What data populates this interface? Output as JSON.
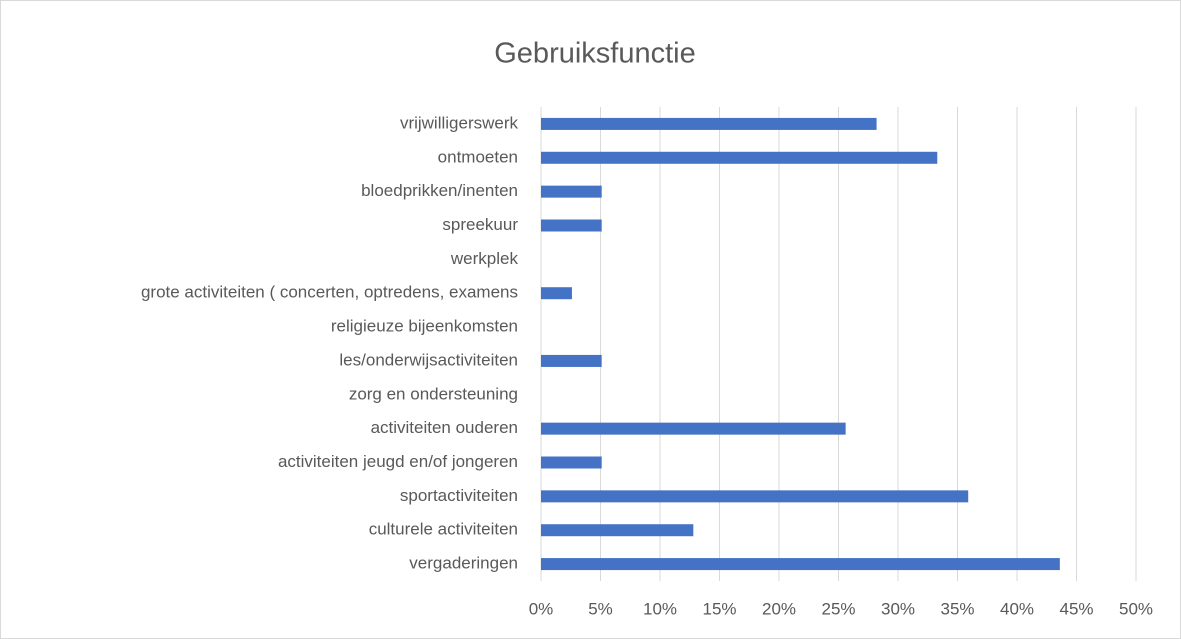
{
  "chart_data": {
    "type": "bar",
    "orientation": "horizontal",
    "title": "Gebruiksfunctie",
    "categories": [
      "vrijwilligerswerk",
      "ontmoeten",
      "bloedprikken/inenten",
      "spreekuur",
      "werkplek",
      "grote activiteiten ( concerten, optredens, examens",
      "religieuze bijeenkomsten",
      "les/onderwijsactiviteiten",
      "zorg en ondersteuning",
      "activiteiten ouderen",
      "activiteiten jeugd en/of jongeren",
      "sportactiviteiten",
      "culturele activiteiten",
      "vergaderingen"
    ],
    "values": [
      28.2,
      33.3,
      5.1,
      5.1,
      0,
      2.6,
      0,
      5.1,
      0,
      25.6,
      5.1,
      35.9,
      12.8,
      43.6
    ],
    "color": "#4472c4",
    "xlim": [
      0,
      50
    ],
    "xticks": [
      {
        "value": 0,
        "label": "0%"
      },
      {
        "value": 5,
        "label": "5%"
      },
      {
        "value": 10,
        "label": "10%"
      },
      {
        "value": 15,
        "label": "15%"
      },
      {
        "value": 20,
        "label": "20%"
      },
      {
        "value": 25,
        "label": "25%"
      },
      {
        "value": 30,
        "label": "30%"
      },
      {
        "value": 35,
        "label": "35%"
      },
      {
        "value": 40,
        "label": "40%"
      },
      {
        "value": 45,
        "label": "45%"
      },
      {
        "value": 50,
        "label": "50%"
      }
    ],
    "grid": true
  }
}
